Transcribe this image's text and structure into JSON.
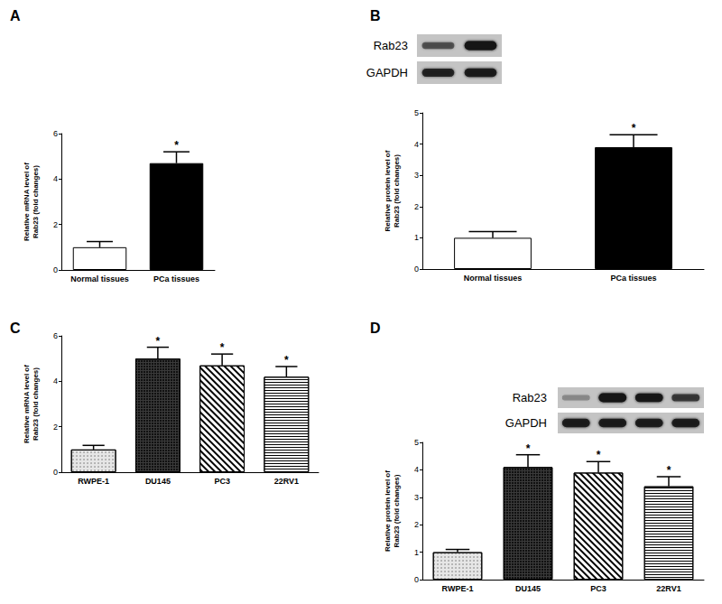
{
  "chart_data": [
    {
      "type": "bar",
      "title": "A",
      "categories": [
        "Normal tissues",
        "PCa tissues"
      ],
      "values": [
        1.0,
        4.7
      ],
      "errors": [
        0.25,
        0.5
      ],
      "colors": [
        "#ffffff",
        "#000000"
      ],
      "ylabel": "Relative mRNA level of\nRab23 (fold changes)",
      "ylim": [
        0,
        6
      ],
      "yticks": [
        0,
        2,
        4,
        6
      ],
      "grid": false,
      "annotations": [
        {
          "category": "PCa tissues",
          "text": "*"
        }
      ]
    },
    {
      "type": "bar",
      "title": "B",
      "categories": [
        "Normal tissues",
        "PCa tissues"
      ],
      "values": [
        1.0,
        3.9
      ],
      "errors": [
        0.2,
        0.4
      ],
      "colors": [
        "#ffffff",
        "#000000"
      ],
      "ylabel": "Relative protein level of\nRab23 (fold changes)",
      "ylim": [
        0,
        5
      ],
      "yticks": [
        0,
        1,
        2,
        3,
        4,
        5
      ],
      "grid": false,
      "annotations": [
        {
          "category": "PCa tissues",
          "text": "*"
        }
      ],
      "blot": {
        "rows": [
          {
            "label": "Rab23",
            "band_strength": [
              0.55,
              1.0
            ]
          },
          {
            "label": "GAPDH",
            "band_strength": [
              0.85,
              0.9
            ]
          }
        ]
      }
    },
    {
      "type": "bar",
      "title": "C",
      "categories": [
        "RWPE-1",
        "DU145",
        "PC3",
        "22RV1"
      ],
      "values": [
        1.0,
        5.0,
        4.7,
        4.2
      ],
      "errors": [
        0.18,
        0.5,
        0.5,
        0.45
      ],
      "colors": [
        "#e6e6e6",
        "#3a3a3a",
        "#ffffff",
        "#ffffff"
      ],
      "ylabel": "Relative mRNA level of\nRab23 (fold changes)",
      "ylim": [
        0,
        6
      ],
      "yticks": [
        0,
        2,
        4,
        6
      ],
      "grid": false,
      "annotations": [
        {
          "category": "DU145",
          "text": "*"
        },
        {
          "category": "PC3",
          "text": "*"
        },
        {
          "category": "22RV1",
          "text": "*"
        }
      ]
    },
    {
      "type": "bar",
      "title": "D",
      "categories": [
        "RWPE-1",
        "DU145",
        "PC3",
        "22RV1"
      ],
      "values": [
        1.0,
        4.1,
        3.9,
        3.4
      ],
      "errors": [
        0.1,
        0.45,
        0.4,
        0.35
      ],
      "colors": [
        "#e6e6e6",
        "#3a3a3a",
        "#ffffff",
        "#ffffff"
      ],
      "ylabel": "Relative protein level of\nRab23 (fold changes)",
      "ylim": [
        0,
        5
      ],
      "yticks": [
        0,
        1,
        2,
        3,
        4,
        5
      ],
      "grid": false,
      "annotations": [
        {
          "category": "DU145",
          "text": "*"
        },
        {
          "category": "PC3",
          "text": "*"
        },
        {
          "category": "22RV1",
          "text": "*"
        }
      ],
      "blot": {
        "rows": [
          {
            "label": "Rab23",
            "band_strength": [
              0.3,
              1.0,
              0.95,
              0.7
            ]
          },
          {
            "label": "GAPDH",
            "band_strength": [
              0.9,
              0.9,
              0.9,
              0.9
            ]
          }
        ]
      }
    }
  ]
}
